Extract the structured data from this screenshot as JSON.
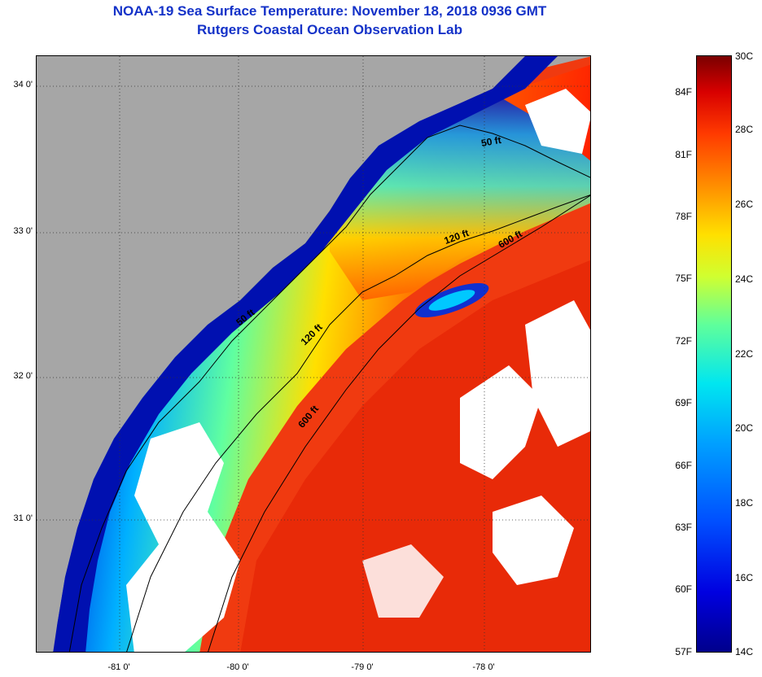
{
  "title": "NOAA-19 Sea Surface Temperature:  November 18, 2018 0936 GMT",
  "subtitle": "Rutgers Coastal Ocean Observation Lab",
  "map": {
    "lat_labels": [
      "34 0'",
      "33 0'",
      "32 0'",
      "31 0'"
    ],
    "lon_labels": [
      "-81 0'",
      "-80 0'",
      "-79 0'",
      "-78 0'"
    ],
    "contours": {
      "c50a": "50 ft",
      "c120a": "120 ft",
      "c600a": "600 ft",
      "c50b": "50 ft",
      "c120b": "120 ft",
      "c600b": "600 ft"
    }
  },
  "colorbar": {
    "fahrenheit": [
      "84F",
      "81F",
      "78F",
      "75F",
      "72F",
      "69F",
      "66F",
      "63F",
      "60F",
      "57F"
    ],
    "celsius": [
      "30C",
      "28C",
      "26C",
      "24C",
      "22C",
      "20C",
      "18C",
      "16C",
      "14C"
    ],
    "colors": [
      "#00008c",
      "#0050ff",
      "#00e6f0",
      "#d0ff30",
      "#ffe000",
      "#ff9000",
      "#ff3a00",
      "#7a0000"
    ]
  }
}
